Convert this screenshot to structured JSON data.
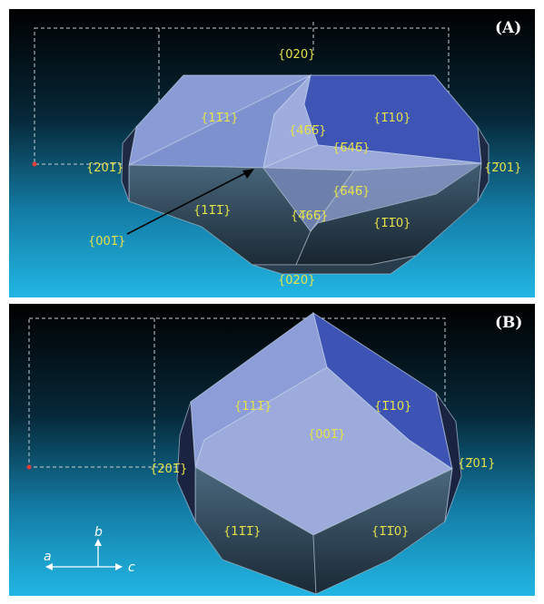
{
  "panel_a": {
    "label": "(A)",
    "faces": {
      "f020_top": "{020}",
      "f11m1_upper": "{11̅1}",
      "f466_upper": "{46̅6̅}",
      "f646_upper": "{6̅46̅}",
      "fm110_upper": "{1̅10}",
      "f201_left": "{201̅}",
      "fm201_right": "{2̅01}",
      "f646_lower": "{6̅46̅}",
      "f1m1m1_lower": "{11̅1̅}",
      "f466_lower": "{4̅66̅}",
      "fm1m10_lower": "{1̅1̅0}",
      "f001": "{001̅}",
      "f020_bottom": "{020}"
    }
  },
  "panel_b": {
    "label": "(B)",
    "faces": {
      "f11m1": "{111̅}",
      "fm110": "{1̅10}",
      "f001": "{001̅}",
      "f201_left": "{201̅}",
      "fm201_right": "{2̅01}",
      "f1m1m1": "{11̅1̅}",
      "fm1m10": "{1̅1̅0}"
    },
    "axes": {
      "a": "a",
      "b": "b",
      "c": "c"
    }
  },
  "colors": {
    "background_top": "#000000",
    "background_bottom": "#22b6e4",
    "label_yellow": "#e7e24a"
  }
}
